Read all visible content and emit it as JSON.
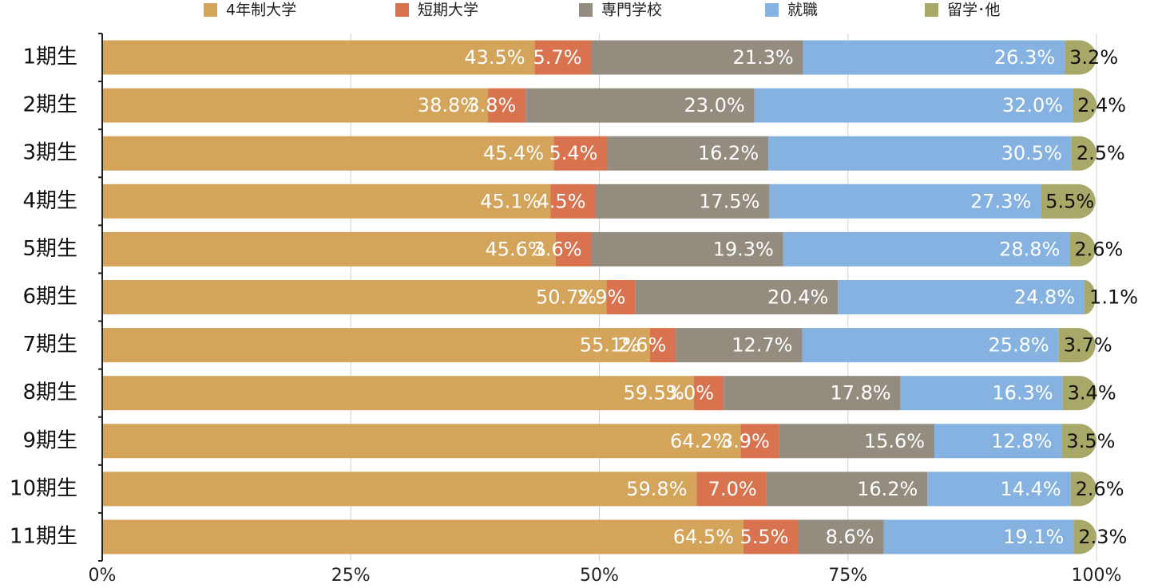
{
  "chart_data": {
    "type": "stacked-bar-horizontal",
    "categories": [
      "1期生",
      "2期生",
      "3期生",
      "4期生",
      "5期生",
      "6期生",
      "7期生",
      "8期生",
      "9期生",
      "10期生",
      "11期生"
    ],
    "series": [
      {
        "name": "4年制大学",
        "color": "#d4a45a",
        "values": [
          43.5,
          38.8,
          45.4,
          45.1,
          45.6,
          50.7,
          55.1,
          59.5,
          64.2,
          59.8,
          64.5
        ],
        "value_labels": [
          "43.5%",
          "38.8%",
          "45.4%",
          "45.1%",
          "45.6%",
          "50.7%",
          "55.1%",
          "59.5%",
          "64.2%",
          "59.8%",
          "64.5%"
        ]
      },
      {
        "name": "短期大学",
        "color": "#d9734f",
        "values": [
          5.7,
          3.8,
          5.4,
          4.5,
          3.6,
          2.9,
          2.6,
          3.0,
          3.9,
          7.0,
          5.5
        ],
        "value_labels": [
          "5.7%",
          "3.8%",
          "5.4%",
          "4.5%",
          "3.6%",
          "2.9%",
          "2.6%",
          "3.0%",
          "3.9%",
          "7.0%",
          "5.5%"
        ]
      },
      {
        "name": "専門学校",
        "color": "#958c80",
        "values": [
          21.3,
          23.0,
          16.2,
          17.5,
          19.3,
          20.4,
          12.7,
          17.8,
          15.6,
          16.2,
          8.6
        ],
        "value_labels": [
          "21.3%",
          "23.0%",
          "16.2%",
          "17.5%",
          "19.3%",
          "20.4%",
          "12.7%",
          "17.8%",
          "15.6%",
          "16.2%",
          "8.6%"
        ]
      },
      {
        "name": "就職",
        "color": "#85b2e0",
        "values": [
          26.3,
          32.0,
          30.5,
          27.3,
          28.8,
          24.8,
          25.8,
          16.3,
          12.8,
          14.4,
          19.1
        ],
        "value_labels": [
          "26.3%",
          "32.0%",
          "30.5%",
          "27.3%",
          "28.8%",
          "24.8%",
          "25.8%",
          "16.3%",
          "12.8%",
          "14.4%",
          "19.1%"
        ]
      },
      {
        "name": "留学･他",
        "color": "#a8a868",
        "values": [
          3.2,
          2.4,
          2.5,
          5.5,
          2.6,
          1.1,
          3.7,
          3.4,
          3.5,
          2.6,
          2.3
        ],
        "value_labels": [
          "3.2%",
          "2.4%",
          "2.5%",
          "5.5%",
          "2.6%",
          "1.1%",
          "3.7%",
          "3.4%",
          "3.5%",
          "2.6%",
          "2.3%"
        ]
      }
    ],
    "xlim": [
      0,
      100
    ],
    "xticks": [
      {
        "value": 0,
        "label": "0%"
      },
      {
        "value": 25,
        "label": "25%"
      },
      {
        "value": 50,
        "label": "50%"
      },
      {
        "value": 75,
        "label": "75%"
      },
      {
        "value": 100,
        "label": "100%"
      }
    ],
    "grid": true,
    "legend": "top"
  }
}
